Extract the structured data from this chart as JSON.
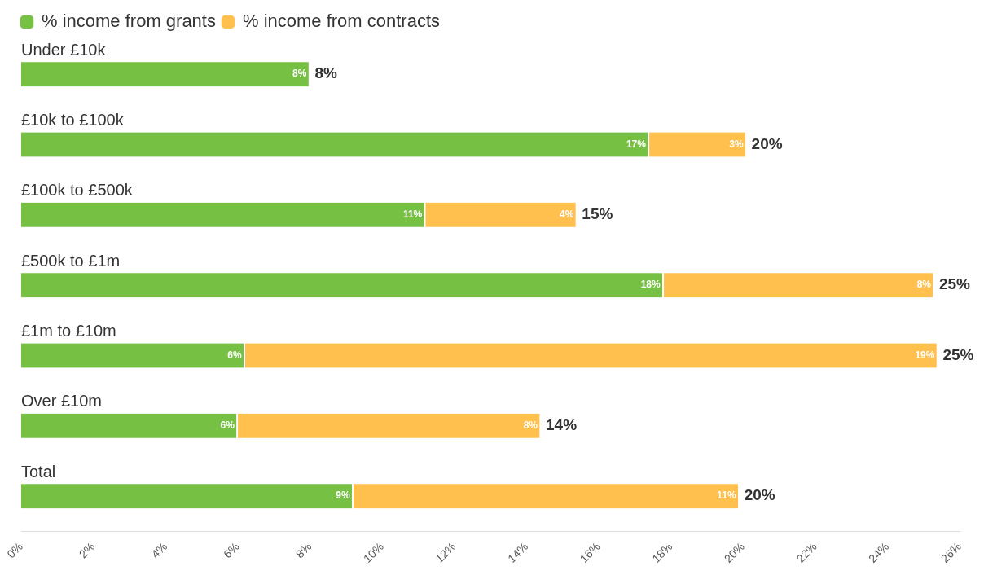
{
  "chart_data": {
    "type": "bar",
    "orientation": "horizontal",
    "stacked": true,
    "categories": [
      "Under £10k",
      "£10k to £100k",
      "£100k to £500k",
      "£500k to £1m",
      "£1m to £10m",
      "Over £10m",
      "Total"
    ],
    "series": [
      {
        "name": "% income from grants",
        "color": "#76c043",
        "values": [
          8.0,
          17.4,
          11.2,
          17.8,
          6.2,
          6.0,
          9.2
        ],
        "value_labels": [
          "8%",
          "17%",
          "11%",
          "18%",
          "6%",
          "6%",
          "9%"
        ]
      },
      {
        "name": "% income from contracts",
        "color": "#ffc04d",
        "values": [
          null,
          2.7,
          4.2,
          7.5,
          19.2,
          8.4,
          10.7
        ],
        "value_labels": [
          null,
          "3%",
          "4%",
          "8%",
          "19%",
          "8%",
          "11%"
        ]
      }
    ],
    "totals": [
      "8%",
      "20%",
      "15%",
      "25%",
      "25%",
      "14%",
      "20%"
    ],
    "xlim": [
      0,
      26
    ],
    "xticks": [
      {
        "value": 0,
        "label": "0%"
      },
      {
        "value": 2,
        "label": "2%"
      },
      {
        "value": 4,
        "label": "4%"
      },
      {
        "value": 6,
        "label": "6%"
      },
      {
        "value": 8,
        "label": "8%"
      },
      {
        "value": 10,
        "label": "10%"
      },
      {
        "value": 12,
        "label": "12%"
      },
      {
        "value": 14,
        "label": "14%"
      },
      {
        "value": 16,
        "label": "16%"
      },
      {
        "value": 18,
        "label": "18%"
      },
      {
        "value": 20,
        "label": "20%"
      },
      {
        "value": 22,
        "label": "22%"
      },
      {
        "value": 24,
        "label": "24%"
      },
      {
        "value": 26,
        "label": "26%"
      }
    ],
    "grid": false,
    "legend": "top left"
  }
}
